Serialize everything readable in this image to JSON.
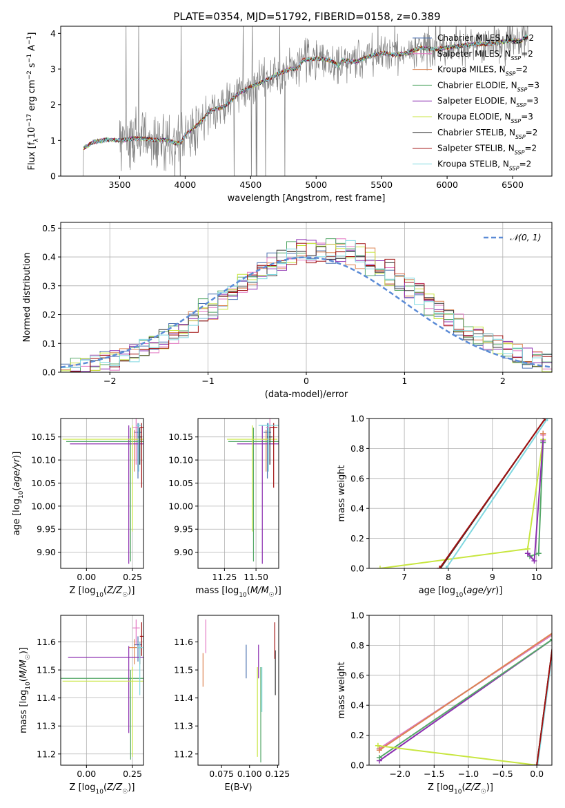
{
  "figure": {
    "title": "PLATE=0354, MJD=51792, FIBERID=0158, z=0.389"
  },
  "colors": {
    "Chabrier MILES": "#4c72b0",
    "Salpeter MILES": "#e377c2",
    "Kroupa MILES": "#dd8452",
    "Chabrier ELODIE": "#55a868",
    "Salpeter ELODIE": "#8c2fb0",
    "Kroupa ELODIE": "#c8e640",
    "Chabrier STELIB": "#333333",
    "Salpeter STELIB": "#a01010",
    "Kroupa STELIB": "#7fd8e0",
    "data": "#808080",
    "normal": "#5b8bd6"
  },
  "chart_data": [
    {
      "id": "spectrum",
      "type": "line",
      "title": "PLATE=0354, MJD=51792, FIBERID=0158, z=0.389",
      "xlabel": "wavelength [Angstrom, rest frame]",
      "ylabel": "Flux [fλ10⁻¹⁷ erg cm⁻² s⁻¹ A⁻¹]",
      "xlim": [
        3050,
        6800
      ],
      "ylim": [
        0,
        4.2
      ],
      "xticks": [
        3500,
        4000,
        4500,
        5000,
        5500,
        6000,
        6500
      ],
      "yticks": [
        0,
        1,
        2,
        3,
        4
      ],
      "legend_position": "top-right",
      "legend": [
        "Chabrier MILES, N_SSP=2",
        "Salpeter MILES, N_SSP=2",
        "Kroupa MILES, N_SSP=2",
        "Chabrier ELODIE, N_SSP=3",
        "Salpeter ELODIE, N_SSP=3",
        "Kroupa ELODIE, N_SSP=3",
        "Chabrier STELIB, N_SSP=2",
        "Salpeter STELIB, N_SSP=2",
        "Kroupa STELIB, N_SSP=2"
      ],
      "model_shape": [
        [
          3220,
          0.0
        ],
        [
          3225,
          0.78
        ],
        [
          3300,
          0.95
        ],
        [
          3400,
          1.02
        ],
        [
          3500,
          1.0
        ],
        [
          3600,
          1.05
        ],
        [
          3700,
          1.05
        ],
        [
          3800,
          1.0
        ],
        [
          3850,
          1.02
        ],
        [
          3930,
          0.92
        ],
        [
          3970,
          0.95
        ],
        [
          4000,
          1.15
        ],
        [
          4100,
          1.45
        ],
        [
          4200,
          1.85
        ],
        [
          4300,
          1.95
        ],
        [
          4400,
          2.3
        ],
        [
          4500,
          2.5
        ],
        [
          4600,
          2.65
        ],
        [
          4700,
          2.85
        ],
        [
          4800,
          3.0
        ],
        [
          4850,
          3.0
        ],
        [
          4900,
          3.25
        ],
        [
          5000,
          3.3
        ],
        [
          5100,
          3.25
        ],
        [
          5170,
          3.1
        ],
        [
          5200,
          3.25
        ],
        [
          5300,
          3.2
        ],
        [
          5400,
          3.35
        ],
        [
          5500,
          3.45
        ],
        [
          5600,
          3.4
        ],
        [
          5700,
          3.45
        ],
        [
          5800,
          3.6
        ],
        [
          5900,
          3.55
        ],
        [
          6000,
          3.6
        ],
        [
          6100,
          3.65
        ],
        [
          6200,
          3.7
        ],
        [
          6300,
          3.7
        ],
        [
          6400,
          3.75
        ],
        [
          6500,
          3.8
        ],
        [
          6560,
          3.78
        ],
        [
          6600,
          3.9
        ]
      ]
    },
    {
      "id": "residuals",
      "type": "histogram",
      "xlabel": "(data-model)/error",
      "ylabel": "Normed distribution",
      "xlim": [
        -2.5,
        2.5
      ],
      "ylim": [
        0,
        0.52
      ],
      "xticks": [
        -2,
        -1,
        0,
        1,
        2
      ],
      "yticks": [
        0.0,
        0.1,
        0.2,
        0.3,
        0.4,
        0.5
      ],
      "legend": [
        "𝒩(0, 1)"
      ],
      "legend_position": "top-right",
      "grid": true
    },
    {
      "id": "age_vs_Z",
      "type": "errorbar",
      "xlabel": "Z [log₁₀(Z/Z☉)]",
      "ylabel": "age  [log₁₀(age/yr)]",
      "xlim": [
        -0.14,
        0.31
      ],
      "ylim": [
        9.865,
        10.19
      ],
      "xticks": [
        0.0,
        0.25
      ],
      "yticks": [
        9.9,
        9.95,
        10.0,
        10.05,
        10.1,
        10.15
      ],
      "grid": true,
      "points": [
        {
          "model": "Chabrier MILES",
          "x": 0.28,
          "xerr": 0.02,
          "y": 10.16,
          "yerr": [
            0.1,
            0.02
          ]
        },
        {
          "model": "Salpeter MILES",
          "x": 0.27,
          "xerr": 0.02,
          "y": 10.17,
          "yerr": [
            0.08,
            0.02
          ]
        },
        {
          "model": "Kroupa MILES",
          "x": 0.26,
          "xerr": 0.03,
          "y": 10.145,
          "yerr": [
            0.07,
            0.02
          ]
        },
        {
          "model": "Chabrier ELODIE",
          "x": 0.24,
          "xerr": 0.35,
          "y": 10.14,
          "yerr": [
            0.26,
            0.03
          ]
        },
        {
          "model": "Salpeter ELODIE",
          "x": 0.23,
          "xerr": 0.32,
          "y": 10.135,
          "yerr": [
            0.26,
            0.04
          ]
        },
        {
          "model": "Kroupa ELODIE",
          "x": 0.25,
          "xerr": 0.38,
          "y": 10.145,
          "yerr": [
            0.2,
            0.03
          ]
        },
        {
          "model": "Chabrier STELIB",
          "x": 0.29,
          "xerr": 0.01,
          "y": 10.15,
          "yerr": [
            0.06,
            0.02
          ]
        },
        {
          "model": "Salpeter STELIB",
          "x": 0.3,
          "xerr": 0.01,
          "y": 10.17,
          "yerr": [
            0.13,
            0.01
          ]
        },
        {
          "model": "Kroupa STELIB",
          "x": 0.285,
          "xerr": 0.015,
          "y": 10.175,
          "yerr": [
            0.1,
            0.005
          ]
        }
      ]
    },
    {
      "id": "age_vs_mass",
      "type": "errorbar",
      "xlabel": "mass [log₁₀(M/M☉)]",
      "ylabel": "",
      "xlim": [
        11.04,
        11.68
      ],
      "ylim": [
        9.865,
        10.19
      ],
      "xticks": [
        11.25,
        11.5
      ],
      "yticks": [
        9.9,
        9.95,
        10.0,
        10.05,
        10.1,
        10.15
      ],
      "grid": true,
      "points": [
        {
          "model": "Chabrier MILES",
          "x": 11.59,
          "xerr": 0.03,
          "y": 10.16,
          "yerr": [
            0.1,
            0.02
          ]
        },
        {
          "model": "Salpeter MILES",
          "x": 11.61,
          "xerr": 0.03,
          "y": 10.17,
          "yerr": [
            0.08,
            0.02
          ]
        },
        {
          "model": "Kroupa MILES",
          "x": 11.58,
          "xerr": 0.03,
          "y": 10.145,
          "yerr": [
            0.07,
            0.02
          ]
        },
        {
          "model": "Chabrier ELODIE",
          "x": 11.48,
          "xerr": 0.2,
          "y": 10.14,
          "yerr": [
            0.26,
            0.03
          ]
        },
        {
          "model": "Salpeter ELODIE",
          "x": 11.55,
          "xerr": 0.2,
          "y": 10.135,
          "yerr": [
            0.26,
            0.04
          ]
        },
        {
          "model": "Kroupa ELODIE",
          "x": 11.47,
          "xerr": 0.2,
          "y": 10.145,
          "yerr": [
            0.2,
            0.03
          ]
        },
        {
          "model": "Chabrier STELIB",
          "x": 11.61,
          "xerr": 0.02,
          "y": 10.15,
          "yerr": [
            0.06,
            0.02
          ]
        },
        {
          "model": "Salpeter STELIB",
          "x": 11.64,
          "xerr": 0.03,
          "y": 10.17,
          "yerr": [
            0.13,
            0.01
          ]
        },
        {
          "model": "Kroupa STELIB",
          "x": 11.6,
          "xerr": 0.08,
          "y": 10.175,
          "yerr": [
            0.1,
            0.005
          ]
        }
      ]
    },
    {
      "id": "massweight_vs_age",
      "type": "line",
      "xlabel": "age  [log₁₀(age/yr)]",
      "ylabel": "mass weight",
      "xlim": [
        6.2,
        10.35
      ],
      "ylim": [
        0,
        1.0
      ],
      "xticks": [
        7,
        8,
        9,
        10
      ],
      "yticks": [
        0.0,
        0.2,
        0.4,
        0.6,
        0.8,
        1.0
      ],
      "grid": true,
      "series": [
        {
          "model": "Kroupa ELODIE",
          "x": [
            6.45,
            9.8,
            10.15
          ],
          "y": [
            0.0,
            0.13,
            0.86
          ]
        },
        {
          "model": "Chabrier ELODIE",
          "x": [
            9.85,
            10.05,
            10.15
          ],
          "y": [
            0.08,
            0.1,
            0.84
          ]
        },
        {
          "model": "Salpeter ELODIE",
          "x": [
            9.8,
            9.95,
            10.15
          ],
          "y": [
            0.1,
            0.05,
            0.85
          ]
        },
        {
          "model": "Chabrier STELIB",
          "x": [
            7.82,
            10.2
          ],
          "y": [
            0.0,
            1.0
          ]
        },
        {
          "model": "Salpeter STELIB",
          "x": [
            7.8,
            10.2
          ],
          "y": [
            0.0,
            1.0
          ]
        },
        {
          "model": "Kroupa STELIB",
          "x": [
            7.95,
            10.25
          ],
          "y": [
            0.0,
            1.0
          ]
        },
        {
          "model": "Chabrier MILES",
          "x": [
            10.15
          ],
          "y": [
            0.9
          ]
        },
        {
          "model": "Salpeter MILES",
          "x": [
            10.15
          ],
          "y": [
            0.89
          ]
        },
        {
          "model": "Kroupa MILES",
          "x": [
            10.15
          ],
          "y": [
            0.9
          ]
        }
      ]
    },
    {
      "id": "mass_vs_Z",
      "type": "errorbar",
      "xlabel": "Z [log₁₀(Z/Z☉)]",
      "ylabel": "mass [log₁₀(M/M☉)]",
      "xlim": [
        -0.14,
        0.31
      ],
      "ylim": [
        11.16,
        11.695
      ],
      "xticks": [
        0.0,
        0.25
      ],
      "yticks": [
        11.2,
        11.3,
        11.4,
        11.5,
        11.6
      ],
      "grid": true,
      "points": [
        {
          "model": "Chabrier MILES",
          "x": 0.28,
          "xerr": 0.02,
          "y": 11.59,
          "yerr": [
            0.06,
            0.03
          ]
        },
        {
          "model": "Salpeter MILES",
          "x": 0.27,
          "xerr": 0.02,
          "y": 11.65,
          "yerr": [
            0.06,
            0.03
          ]
        },
        {
          "model": "Kroupa MILES",
          "x": 0.26,
          "xerr": 0.03,
          "y": 11.58,
          "yerr": [
            0.06,
            0.03
          ]
        },
        {
          "model": "Chabrier ELODIE",
          "x": 0.24,
          "xerr": 0.38,
          "y": 11.47,
          "yerr": [
            0.29,
            0.03
          ]
        },
        {
          "model": "Salpeter ELODIE",
          "x": 0.23,
          "xerr": 0.33,
          "y": 11.545,
          "yerr": [
            0.27,
            0.04
          ]
        },
        {
          "model": "Kroupa ELODIE",
          "x": 0.25,
          "xerr": 0.38,
          "y": 11.46,
          "yerr": [
            0.27,
            0.05
          ]
        },
        {
          "model": "Chabrier STELIB",
          "x": 0.29,
          "xerr": 0.01,
          "y": 11.58,
          "yerr": [
            0.06,
            0.02
          ]
        },
        {
          "model": "Salpeter STELIB",
          "x": 0.3,
          "xerr": 0.01,
          "y": 11.62,
          "yerr": [
            0.07,
            0.05
          ]
        },
        {
          "model": "Kroupa STELIB",
          "x": 0.29,
          "xerr": 0.015,
          "y": 11.58,
          "yerr": [
            0.17,
            0.02
          ]
        }
      ]
    },
    {
      "id": "mass_vs_EBV",
      "type": "errorbar",
      "xlabel": "E(B-V)",
      "ylabel": "",
      "xlim": [
        0.054,
        0.126
      ],
      "ylim": [
        11.16,
        11.695
      ],
      "xticks": [
        0.075,
        0.1,
        0.125
      ],
      "yticks": [
        11.2,
        11.3,
        11.4,
        11.5,
        11.6
      ],
      "grid": false,
      "points": [
        {
          "model": "Chabrier MILES",
          "x": 0.097,
          "y": 11.53,
          "yerr": [
            0.06,
            0.06
          ]
        },
        {
          "model": "Salpeter MILES",
          "x": 0.061,
          "y": 11.62,
          "yerr": [
            0.06,
            0.06
          ]
        },
        {
          "model": "Kroupa MILES",
          "x": 0.0585,
          "y": 11.5,
          "yerr": [
            0.06,
            0.06
          ]
        },
        {
          "model": "Chabrier ELODIE",
          "x": 0.11,
          "y": 11.39,
          "yerr": [
            0.22,
            0.12
          ]
        },
        {
          "model": "Salpeter ELODIE",
          "x": 0.108,
          "y": 11.53,
          "yerr": [
            0.06,
            0.06
          ]
        },
        {
          "model": "Kroupa ELODIE",
          "x": 0.107,
          "y": 11.35,
          "yerr": [
            0.16,
            0.16
          ]
        },
        {
          "model": "Chabrier STELIB",
          "x": 0.123,
          "y": 11.5,
          "yerr": [
            0.09,
            0.07
          ]
        },
        {
          "model": "Salpeter STELIB",
          "x": 0.1225,
          "y": 11.6,
          "yerr": [
            0.06,
            0.07
          ]
        },
        {
          "model": "Kroupa STELIB",
          "x": 0.111,
          "y": 11.45,
          "yerr": [
            0.1,
            0.06
          ]
        }
      ]
    },
    {
      "id": "massweight_vs_Z",
      "type": "line",
      "xlabel": "Z [log₁₀(Z/Z☉)]",
      "ylabel": "mass weight",
      "xlim": [
        -2.45,
        0.22
      ],
      "ylim": [
        0,
        1.0
      ],
      "xticks": [
        -2.0,
        -1.5,
        -1.0,
        -0.5,
        0.0
      ],
      "yticks": [
        0.0,
        0.2,
        0.4,
        0.6,
        0.8,
        1.0
      ],
      "grid": true,
      "series": [
        {
          "model": "Chabrier MILES",
          "x": [
            -2.3,
            0.29
          ],
          "y": [
            0.11,
            0.89
          ]
        },
        {
          "model": "Salpeter MILES",
          "x": [
            -2.3,
            0.29
          ],
          "y": [
            0.11,
            0.89
          ]
        },
        {
          "model": "Kroupa MILES",
          "x": [
            -2.3,
            0.29
          ],
          "y": [
            0.1,
            0.9
          ]
        },
        {
          "model": "Salpeter ELODIE",
          "x": [
            -2.3,
            0.23
          ],
          "y": [
            0.03,
            0.84
          ]
        },
        {
          "model": "Chabrier ELODIE",
          "x": [
            -2.3,
            0.23
          ],
          "y": [
            0.05,
            0.84
          ]
        },
        {
          "model": "Kroupa ELODIE",
          "x": [
            -2.32,
            0.0,
            0.25
          ],
          "y": [
            0.13,
            0.0,
            0.86
          ]
        },
        {
          "model": "Chabrier STELIB",
          "x": [
            0.0,
            0.29
          ],
          "y": [
            0.0,
            1.0
          ]
        },
        {
          "model": "Kroupa STELIB",
          "x": [
            0.01,
            0.3
          ],
          "y": [
            0.0,
            1.0
          ]
        },
        {
          "model": "Salpeter STELIB",
          "x": [
            0.0,
            0.29
          ],
          "y": [
            0.0,
            1.0
          ]
        }
      ]
    }
  ]
}
